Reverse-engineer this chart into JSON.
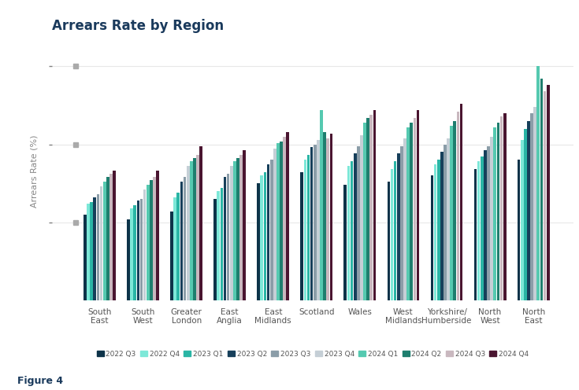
{
  "title": "Arrears Rate by Region",
  "ylabel": "Arrears Rate (%)",
  "figure_label": "Figure 4",
  "regions": [
    "South\nEast",
    "South\nWest",
    "Greater\nLondon",
    "East\nAnglia",
    "East\nMidlands",
    "Scotland",
    "Wales",
    "West\nMidlands",
    "Yorkshire/\nHumberside",
    "North\nWest",
    "North\nEast"
  ],
  "quarters": [
    "2022 Q3",
    "2022 Q4",
    "2023 Q1",
    "2023 Q2",
    "2023 Q3",
    "2023 Q4",
    "2024 Q1",
    "2024 Q2",
    "2024 Q3",
    "2024 Q4"
  ],
  "colors": [
    "#0d3349",
    "#7de8d8",
    "#2ab5a5",
    "#163f5a",
    "#8b9da8",
    "#c5cfd6",
    "#55c9b0",
    "#1e7e6e",
    "#c9b8bf",
    "#4a1530"
  ],
  "data": {
    "2022 Q3": [
      0.55,
      0.52,
      0.57,
      0.65,
      0.75,
      0.82,
      0.74,
      0.76,
      0.8,
      0.84,
      0.9
    ],
    "2022 Q4": [
      0.62,
      0.59,
      0.66,
      0.7,
      0.8,
      0.9,
      0.86,
      0.84,
      0.87,
      0.89,
      1.03
    ],
    "2023 Q1": [
      0.63,
      0.61,
      0.69,
      0.72,
      0.82,
      0.93,
      0.89,
      0.89,
      0.9,
      0.92,
      1.1
    ],
    "2023 Q2": [
      0.66,
      0.64,
      0.76,
      0.79,
      0.87,
      0.98,
      0.94,
      0.94,
      0.95,
      0.96,
      1.15
    ],
    "2023 Q3": [
      0.68,
      0.65,
      0.79,
      0.81,
      0.9,
      1.0,
      0.99,
      0.99,
      1.0,
      0.99,
      1.2
    ],
    "2023 Q4": [
      0.73,
      0.71,
      0.86,
      0.86,
      0.97,
      1.03,
      1.06,
      1.04,
      1.04,
      1.05,
      1.24
    ],
    "2024 Q1": [
      0.76,
      0.74,
      0.89,
      0.89,
      1.01,
      1.22,
      1.14,
      1.11,
      1.12,
      1.11,
      1.5
    ],
    "2024 Q2": [
      0.79,
      0.77,
      0.91,
      0.91,
      1.02,
      1.08,
      1.17,
      1.14,
      1.15,
      1.14,
      1.42
    ],
    "2024 Q3": [
      0.81,
      0.79,
      0.93,
      0.93,
      1.05,
      1.04,
      1.19,
      1.17,
      1.21,
      1.18,
      1.34
    ],
    "2024 Q4": [
      0.83,
      0.83,
      0.99,
      0.96,
      1.08,
      1.07,
      1.22,
      1.22,
      1.26,
      1.2,
      1.38
    ]
  },
  "background_color": "#ffffff",
  "grid_color": "#e8e8e8",
  "title_color": "#1a3a5c",
  "ylabel_color": "#888888",
  "tick_label_color": "#555555",
  "ylim": [
    0,
    1.65
  ],
  "yticks": [
    0.5,
    1.0,
    1.5
  ]
}
